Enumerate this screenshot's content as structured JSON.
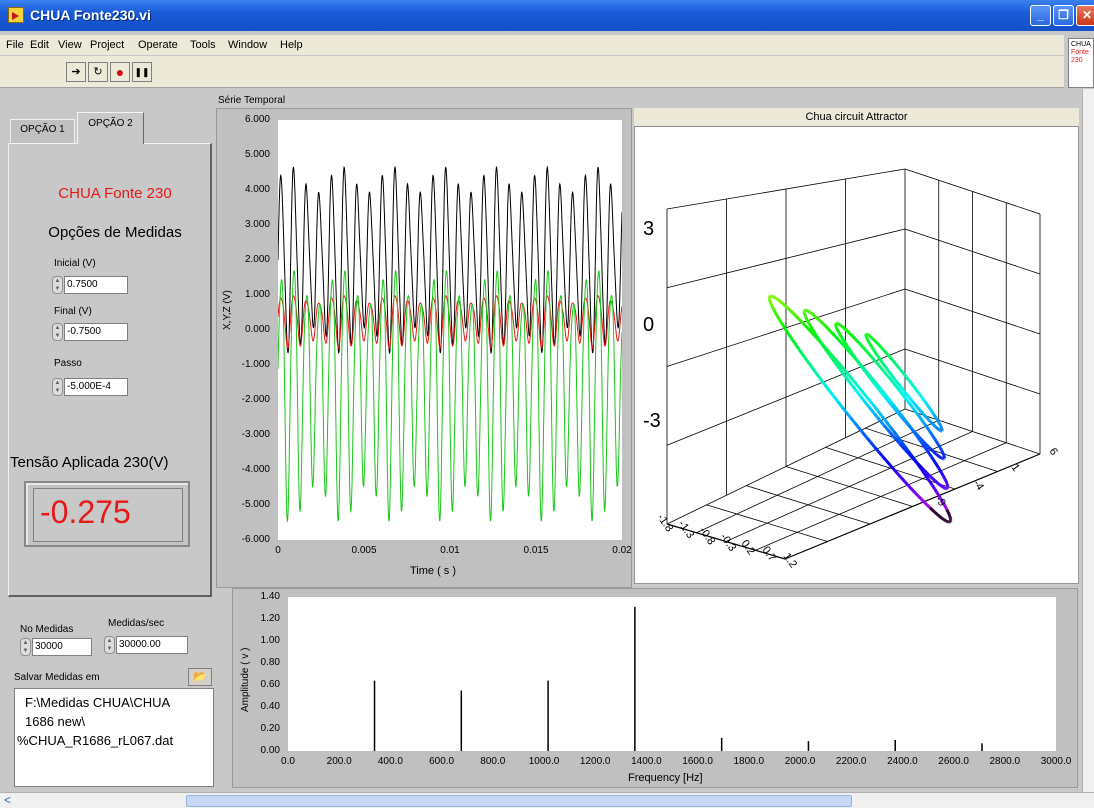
{
  "window": {
    "title": "CHUA Fonte230.vi"
  },
  "menu": [
    "File",
    "Edit",
    "View",
    "Project",
    "Operate",
    "Tools",
    "Window",
    "Help"
  ],
  "toolbar": {
    "run": "➔",
    "run_continuous": "↻",
    "abort": "●",
    "pause": "❚❚",
    "help": "?"
  },
  "vi_icon": [
    "CHUA",
    "Fonte",
    "230"
  ],
  "tabs": [
    {
      "label": "OPÇÃO 1"
    },
    {
      "label": "OPÇÃO 2"
    }
  ],
  "left_panel": {
    "device_title": "CHUA Fonte 230",
    "options_title": "Opções de Medidas",
    "initial": {
      "label": "Inicial  (V)",
      "value": "0.7500"
    },
    "final": {
      "label": "Final (V)",
      "value": "-0.7500"
    },
    "step": {
      "label": "Passo",
      "value": "-5.000E-4"
    },
    "applied_label": "Tensão Aplicada 230(V)",
    "applied_value": "-0.275"
  },
  "acquisition": {
    "n_measures": {
      "label": "No Medidas",
      "value": "30000"
    },
    "rate": {
      "label": "Medidas/sec",
      "value": "30000.00"
    },
    "save_label": "Salvar  Medidas em",
    "save_path": [
      "F:\\Medidas CHUA\\CHUA",
      "1686 new\\",
      "%CHUA_R1686_rL067.dat"
    ]
  },
  "colors": {
    "x": "#e81818",
    "y": "#18c818",
    "z": "#000000",
    "label_red": "#e81818"
  },
  "chart_data": [
    {
      "type": "line",
      "title": "Série Temporal",
      "xlabel": "Time ( s )",
      "ylabel": "X,Y,Z (V)",
      "xlim": [
        0,
        0.02
      ],
      "ylim": [
        -6,
        6
      ],
      "x_ticks": [
        "0",
        "0.005",
        "0.01",
        "0.015",
        "0.02"
      ],
      "y_ticks": [
        "6.000",
        "5.000",
        "4.000",
        "3.000",
        "2.000",
        "1.000",
        "0.000",
        "-1.000",
        "-2.000",
        "-3.000",
        "-4.000",
        "-5.000",
        "-6.000"
      ],
      "series": [
        {
          "color": "#000000",
          "mean": 2.0,
          "amp": 2.6,
          "freq_hz": 1355
        },
        {
          "color": "#e81818",
          "mean": 0.3,
          "amp": 0.75,
          "freq_hz": 1355
        },
        {
          "color": "#18c818",
          "mean": -1.5,
          "amp": 3.6,
          "freq_hz": 1355
        }
      ]
    },
    {
      "type": "scatter",
      "title": "Chua circuit Attractor",
      "z_ticks": [
        "3",
        "0",
        "-3"
      ],
      "x_ticks": [
        "-1.8",
        "-1.3",
        "-0.8",
        "-0.3",
        "0.2",
        "0.7",
        "1.2"
      ],
      "y_ticks": [
        "-9",
        "-4",
        "1",
        "6"
      ]
    },
    {
      "type": "bar",
      "xlabel": "Frequency [Hz]",
      "ylabel": "Amplitude ( v )",
      "xlim": [
        0,
        3000
      ],
      "ylim": [
        0,
        1.4
      ],
      "x_ticks": [
        "0.0",
        "200.0",
        "400.0",
        "600.0",
        "800.0",
        "1000.0",
        "1200.0",
        "1400.0",
        "1600.0",
        "1800.0",
        "2000.0",
        "2200.0",
        "2400.0",
        "2600.0",
        "2800.0",
        "3000.0"
      ],
      "y_ticks": [
        "1.40",
        "1.20",
        "1.00",
        "0.80",
        "0.60",
        "0.40",
        "0.20",
        "0.00"
      ],
      "peaks": [
        {
          "freq": 338,
          "value": 0.64
        },
        {
          "freq": 677,
          "value": 0.55
        },
        {
          "freq": 1016,
          "value": 0.64
        },
        {
          "freq": 1355,
          "value": 1.31
        },
        {
          "freq": 1694,
          "value": 0.12
        },
        {
          "freq": 2033,
          "value": 0.09
        },
        {
          "freq": 2372,
          "value": 0.1
        },
        {
          "freq": 2711,
          "value": 0.07
        }
      ]
    }
  ]
}
